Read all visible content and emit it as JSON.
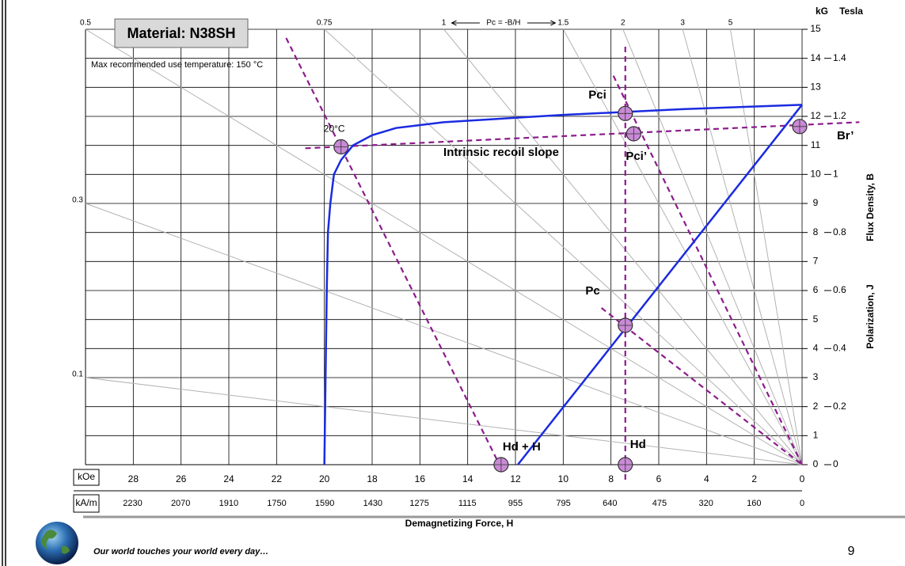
{
  "slide": {
    "footer": "Our world touches your world every day…",
    "page_number": "9"
  },
  "chart_data": {
    "type": "line",
    "title": "Material: N38SH",
    "subtitle": "Max recommended use temperature: 150 °C",
    "x_label": "Demagnetizing Force, H",
    "x_unit": "kOe",
    "x2_unit": "kA/m",
    "y_unit": "kG",
    "y2_unit": "Tesla",
    "y_label": "Flux Density, B",
    "y2_label": "Polarization, J",
    "load_line_label": "Pc = -B/H",
    "annotation": "Intrinsic recoil slope",
    "xlim": [
      30,
      0
    ],
    "xticks": [
      28,
      26,
      24,
      22,
      20,
      18,
      16,
      14,
      12,
      10,
      8,
      6,
      4,
      2,
      0
    ],
    "x2lim": [
      2387,
      0
    ],
    "x2ticks": [
      2230,
      2070,
      1910,
      1750,
      1590,
      1430,
      1275,
      1115,
      955,
      795,
      640,
      475,
      320,
      160,
      0
    ],
    "ylim": [
      0,
      15
    ],
    "yticks": [
      0,
      1,
      2,
      3,
      4,
      5,
      6,
      7,
      8,
      9,
      10,
      11,
      12,
      13,
      14,
      15
    ],
    "y2lim": [
      0,
      1.5
    ],
    "y2ticks": [
      0,
      0.2,
      0.4,
      0.6,
      0.8,
      1.0,
      1.2,
      1.4
    ],
    "grid": true,
    "load_lines": [
      0.1,
      0.3,
      0.5,
      0.75,
      1,
      1.5,
      2,
      3,
      5
    ],
    "load_line_color": "#b3b3b3",
    "series": [
      {
        "color": "#1a2be0",
        "x": [
          0,
          11.9
        ],
        "values": [
          12.4,
          0
        ]
      },
      {
        "color": "#1a2be0",
        "x": [
          0,
          5,
          10,
          15,
          17,
          18,
          18.8,
          19.3,
          19.6,
          19.75,
          19.85,
          19.9,
          20
        ],
        "values": [
          12.4,
          12.25,
          12.05,
          11.8,
          11.6,
          11.35,
          11.0,
          10.5,
          10,
          9,
          8,
          6,
          0
        ]
      }
    ],
    "reference_lines": [
      {
        "x": [
          7.4,
          7.4
        ],
        "values": [
          14.4,
          -0.6
        ]
      },
      {
        "x": [
          20.8,
          -2.4
        ],
        "values": [
          10.9,
          11.8
        ]
      },
      {
        "x": [
          21.6,
          12.7
        ],
        "values": [
          14.7,
          0.05
        ]
      },
      {
        "x": [
          7.9,
          0
        ],
        "values": [
          13.4,
          0
        ]
      },
      {
        "x": [
          8.4,
          0
        ],
        "values": [
          5.4,
          0
        ]
      }
    ],
    "reference_color": "#8b1c8b",
    "points": [
      {
        "label": "Pci",
        "x": 7.4,
        "y": 12.1
      },
      {
        "label": "Pci’",
        "x": 7.05,
        "y": 11.4
      },
      {
        "label": "Br’",
        "x": 0.1,
        "y": 11.65
      },
      {
        "label": "20°C",
        "x": 19.3,
        "y": 10.95
      },
      {
        "label": "Pc",
        "x": 7.4,
        "y": 4.8
      },
      {
        "label": "Hd",
        "x": 7.4,
        "y": 0
      },
      {
        "label": "Hd + H",
        "x": 12.6,
        "y": 0
      }
    ],
    "marker_color": "#c98ad6"
  }
}
